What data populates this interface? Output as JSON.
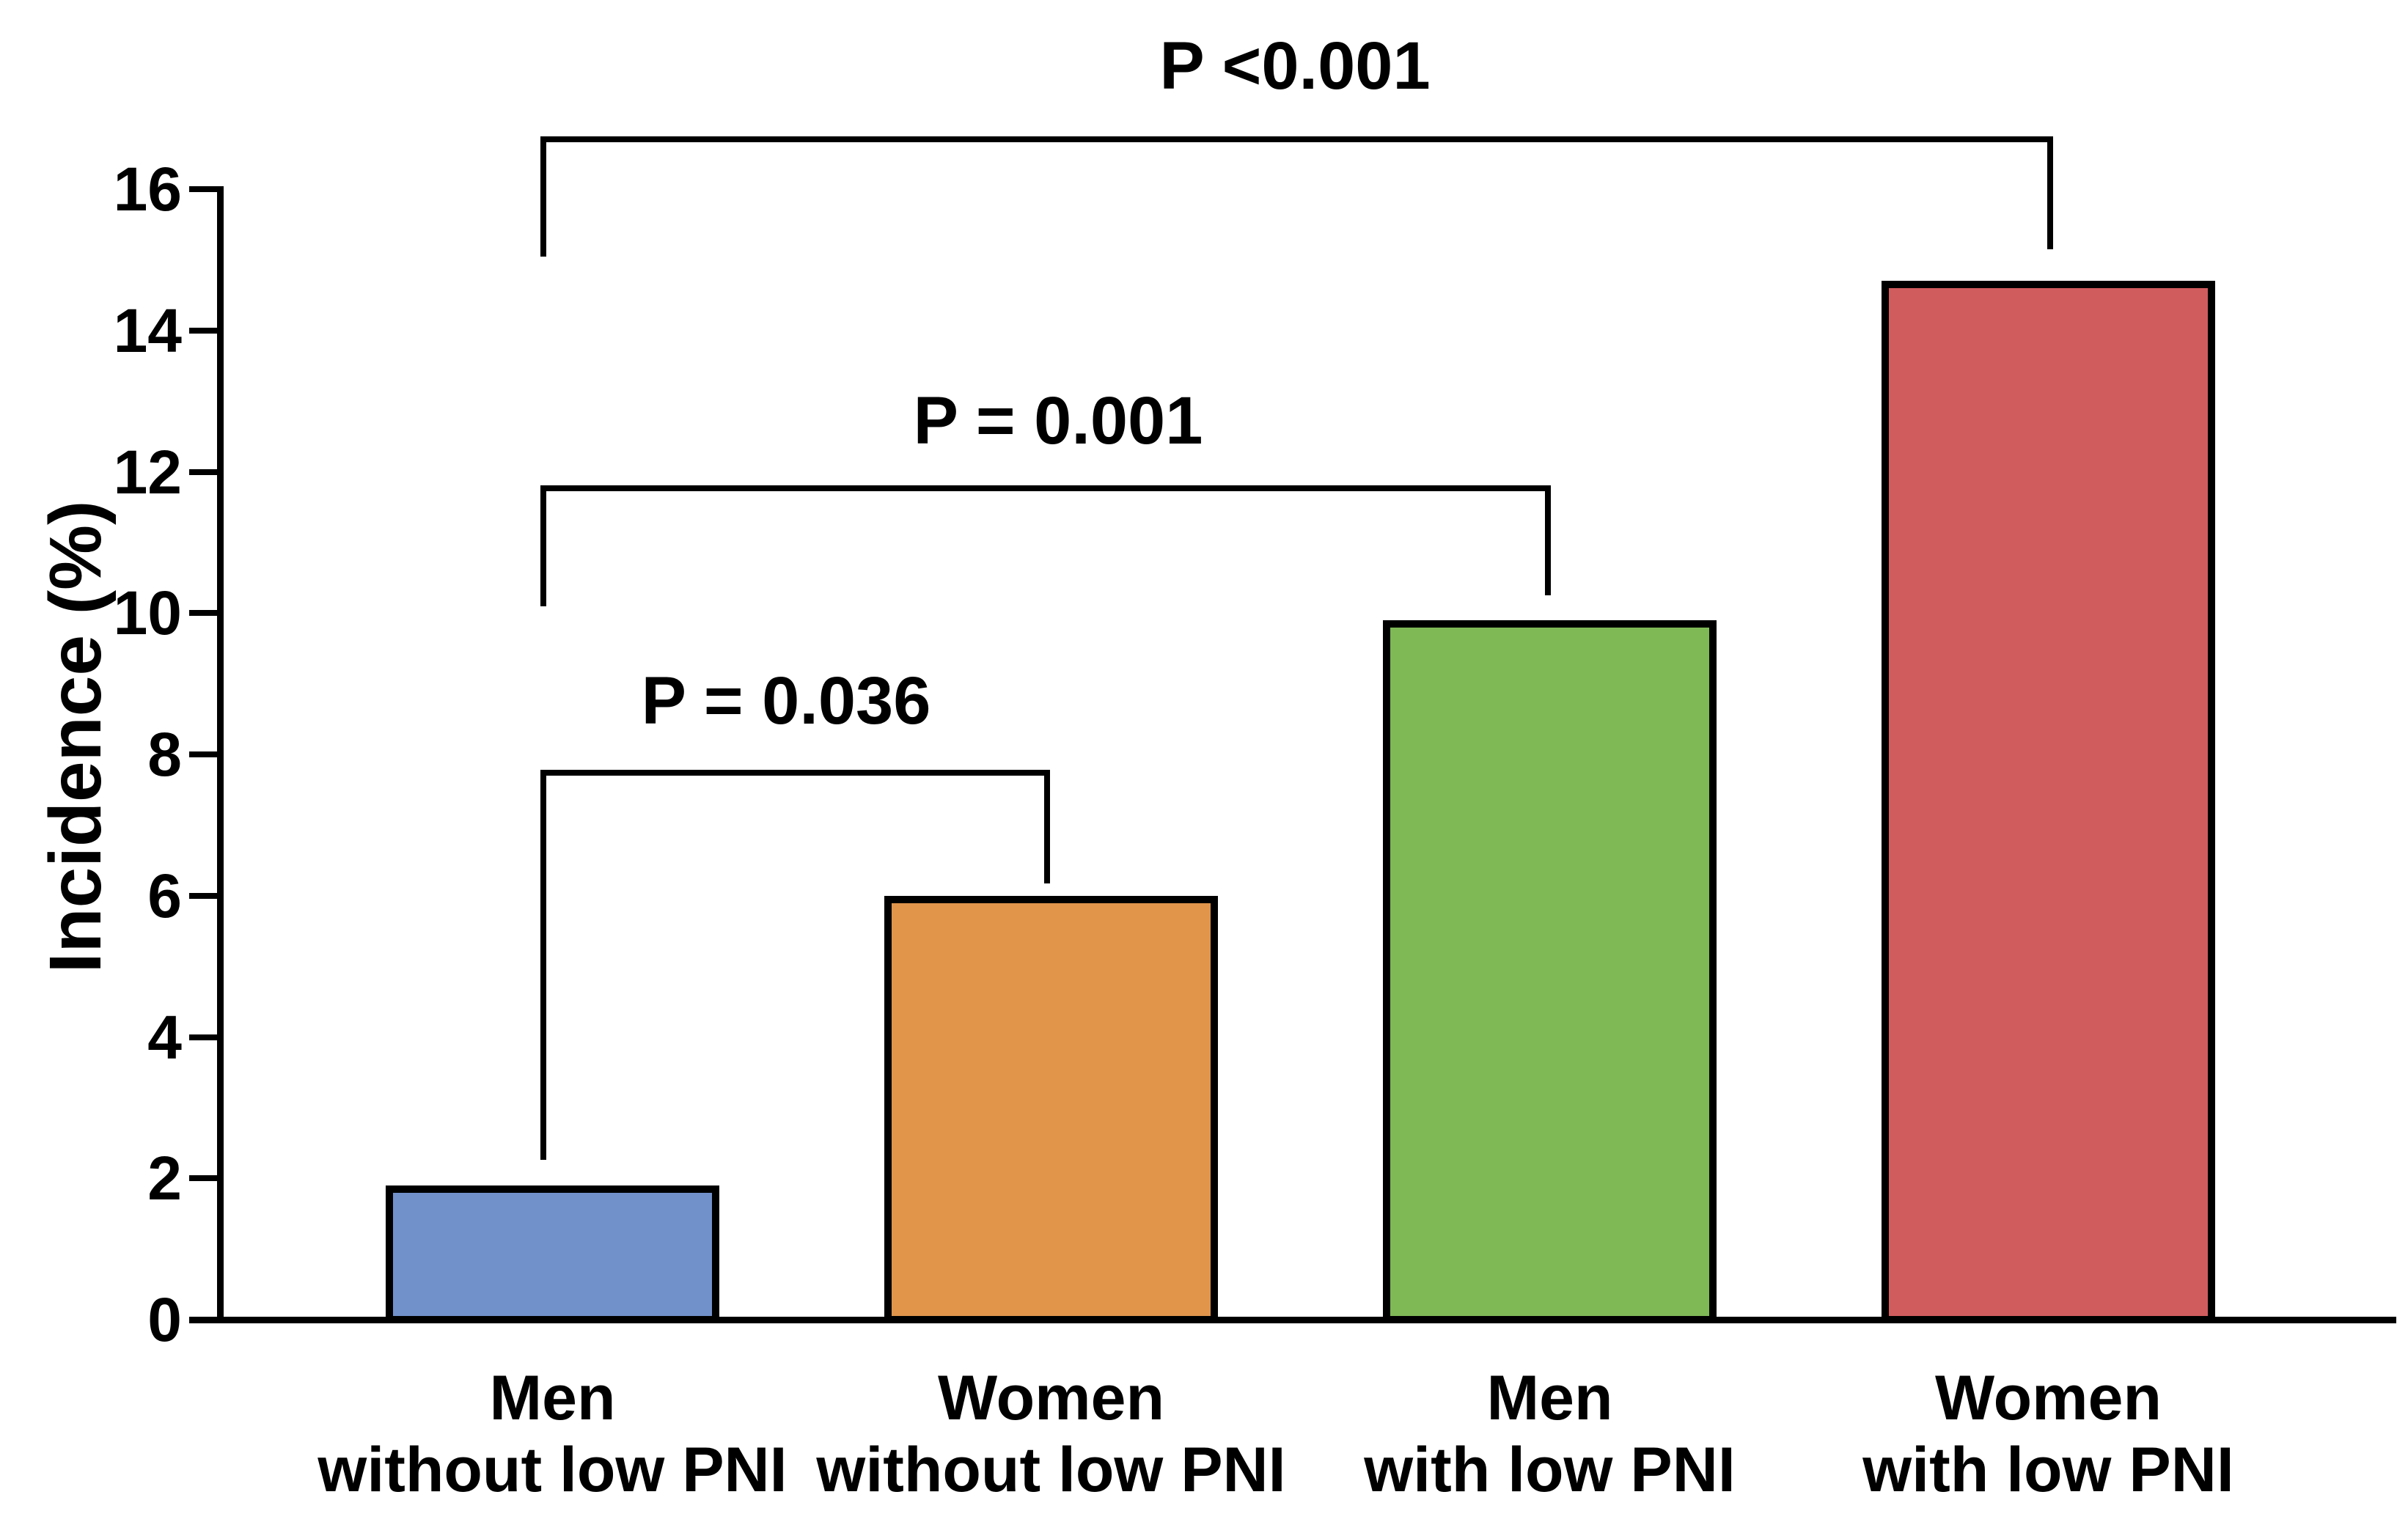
{
  "chart_data": {
    "type": "bar",
    "title": "",
    "xlabel": "",
    "ylabel": "Incidence (%)",
    "ylim": [
      0,
      16
    ],
    "yticks": [
      16,
      14,
      12,
      10,
      8,
      6,
      4,
      2,
      0
    ],
    "grid": false,
    "legend": "none",
    "bars": [
      {
        "line1": "Men",
        "line2": "without low PNI",
        "category": "Men without low PNI",
        "value": 1.9,
        "color": "#7191CB"
      },
      {
        "line1": "Women",
        "line2": "without low PNI",
        "category": "Women without low PNI",
        "value": 6.0,
        "color": "#E0954B"
      },
      {
        "line1": "Men",
        "line2": "with low PNI",
        "category": "Men with low PNI",
        "value": 9.9,
        "color": "#7FB956"
      },
      {
        "line1": "Women",
        "line2": "with low PNI",
        "category": "Women with low PNI",
        "value": 14.7,
        "color": "#D15C5E"
      }
    ],
    "brackets": [
      {
        "label": "P = 0.036",
        "from": "Men without low PNI",
        "to": "Women without low PNI"
      },
      {
        "label": "P = 0.001",
        "from": "Men without low PNI",
        "to": "Men with low PNI"
      },
      {
        "label": "P <0.001",
        "from": "Men without low PNI",
        "to": "Women with low PNI"
      }
    ],
    "axis_color": "#000000",
    "bar_outline_color": "#000000"
  }
}
